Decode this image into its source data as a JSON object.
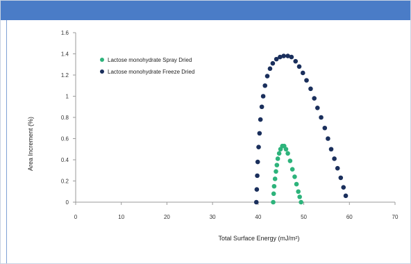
{
  "chart_data": {
    "type": "scatter",
    "title": "",
    "xlabel": "Total Surface Energy (mJ/m²)",
    "ylabel": "Area Increment (%)",
    "xlim": [
      0,
      70
    ],
    "ylim": [
      0,
      1.6
    ],
    "x_ticks": [
      "0",
      "10",
      "20",
      "30",
      "40",
      "50",
      "60",
      "70"
    ],
    "y_ticks": [
      "0",
      "0.2",
      "0.4",
      "0.6",
      "0.8",
      "1",
      "1.2",
      "1.4",
      "1.6"
    ],
    "grid": false,
    "legend_position": "top-left",
    "series": [
      {
        "name": "Lactose monohydrate Spray Dried",
        "color": "#2db37b",
        "marker": "circle",
        "points": [
          [
            43.3,
            0.0
          ],
          [
            43.4,
            0.08
          ],
          [
            43.5,
            0.15
          ],
          [
            43.7,
            0.22
          ],
          [
            43.9,
            0.29
          ],
          [
            44.1,
            0.35
          ],
          [
            44.3,
            0.41
          ],
          [
            44.6,
            0.46
          ],
          [
            44.9,
            0.5
          ],
          [
            45.3,
            0.53
          ],
          [
            45.7,
            0.53
          ],
          [
            46.1,
            0.5
          ],
          [
            46.5,
            0.46
          ],
          [
            47.0,
            0.39
          ],
          [
            47.5,
            0.31
          ],
          [
            48.0,
            0.24
          ],
          [
            48.4,
            0.17
          ],
          [
            48.8,
            0.1
          ],
          [
            49.1,
            0.05
          ],
          [
            49.4,
            0.0
          ]
        ]
      },
      {
        "name": "Lactose monohydrate Freeze Dried",
        "color": "#1a2f5c",
        "marker": "circle",
        "points": [
          [
            39.6,
            0.0
          ],
          [
            39.7,
            0.12
          ],
          [
            39.8,
            0.25
          ],
          [
            39.9,
            0.38
          ],
          [
            40.1,
            0.52
          ],
          [
            40.3,
            0.65
          ],
          [
            40.5,
            0.78
          ],
          [
            40.8,
            0.9
          ],
          [
            41.1,
            1.0
          ],
          [
            41.5,
            1.1
          ],
          [
            42.0,
            1.19
          ],
          [
            42.6,
            1.26
          ],
          [
            43.2,
            1.31
          ],
          [
            44.0,
            1.35
          ],
          [
            44.8,
            1.37
          ],
          [
            45.6,
            1.38
          ],
          [
            46.5,
            1.38
          ],
          [
            47.3,
            1.37
          ],
          [
            48.2,
            1.33
          ],
          [
            49.0,
            1.28
          ],
          [
            49.8,
            1.22
          ],
          [
            50.6,
            1.15
          ],
          [
            51.5,
            1.07
          ],
          [
            52.3,
            0.98
          ],
          [
            53.0,
            0.89
          ],
          [
            53.8,
            0.8
          ],
          [
            54.6,
            0.7
          ],
          [
            55.3,
            0.6
          ],
          [
            56.0,
            0.5
          ],
          [
            56.7,
            0.41
          ],
          [
            57.4,
            0.32
          ],
          [
            58.1,
            0.23
          ],
          [
            58.7,
            0.14
          ],
          [
            59.2,
            0.06
          ]
        ]
      }
    ]
  }
}
